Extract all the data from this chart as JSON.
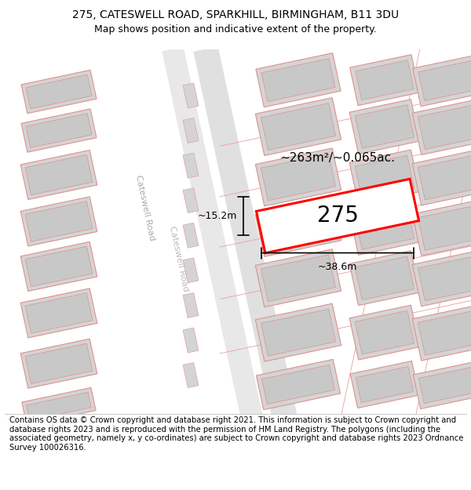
{
  "title_line1": "275, CATESWELL ROAD, SPARKHILL, BIRMINGHAM, B11 3DU",
  "title_line2": "Map shows position and indicative extent of the property.",
  "footer_text": "Contains OS data © Crown copyright and database right 2021. This information is subject to Crown copyright and database rights 2023 and is reproduced with the permission of HM Land Registry. The polygons (including the associated geometry, namely x, y co-ordinates) are subject to Crown copyright and database rights 2023 Ordnance Survey 100026316.",
  "property_label": "275",
  "area_label": "~263m²/~0.065ac.",
  "width_label": "~38.6m",
  "height_label": "~15.2m",
  "map_bg": "#f9f9f9",
  "road_fill": "#e8e8e8",
  "building_fill": "#d4d4d4",
  "building_edge": "#e09090",
  "inner_fill": "#c8c8c8",
  "highlight_color": "#ff0000",
  "title_fontsize": 10,
  "subtitle_fontsize": 9,
  "footer_fontsize": 7.2,
  "road_label_color": "#aaaaaa"
}
